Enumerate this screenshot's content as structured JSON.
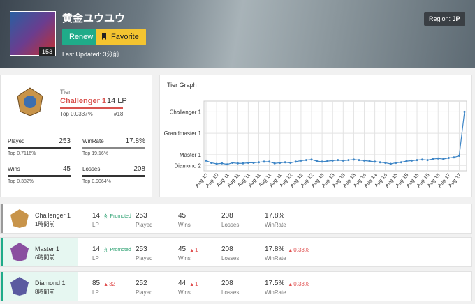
{
  "header": {
    "name": "黄金ユウユウ",
    "level": 153,
    "renew": "Renew",
    "favorite": "Favorite",
    "last_updated": "Last Updated: 3分前",
    "region_label": "Region:",
    "region": "JP"
  },
  "tier_card": {
    "label": "Tier",
    "tier": "Challenger 1",
    "lp": "14 LP",
    "top": "Top 0.0337%",
    "rank": "#18",
    "stats": [
      {
        "name": "Played",
        "value": 253,
        "top": "Top 0.7116%"
      },
      {
        "name": "WinRate",
        "value": "17.8%",
        "top": "Top 19.16%"
      },
      {
        "name": "Wins",
        "value": 45,
        "top": "Top 0.382%"
      },
      {
        "name": "Losses",
        "value": 208,
        "top": "Top 0.9064%"
      }
    ]
  },
  "chart_data": {
    "type": "line",
    "title": "Tier Graph",
    "color": "#3d85c6",
    "categories": [
      "Aug 10",
      null,
      "Aug 10",
      null,
      "Aug 11",
      null,
      "Aug 11",
      null,
      "Aug 11",
      null,
      "Aug 11",
      null,
      "Aug 11",
      null,
      "Aug 11",
      null,
      "Aug 12",
      null,
      "Aug 12",
      null,
      "Aug 12",
      null,
      "Aug 13",
      null,
      "Aug 13",
      null,
      "Aug 13",
      null,
      "Aug 13",
      null,
      "Aug 14",
      null,
      "Aug 14",
      null,
      "Aug 14",
      null,
      "Aug 15",
      null,
      "Aug 15",
      null,
      "Aug 15",
      null,
      "Aug 16",
      null,
      "Aug 16",
      null,
      "Aug 17",
      null,
      "Aug 17",
      null
    ],
    "values": [
      0.9,
      0.5,
      0.3,
      0.4,
      0.2,
      0.5,
      0.4,
      0.4,
      0.5,
      0.5,
      0.6,
      0.7,
      0.7,
      0.4,
      0.5,
      0.6,
      0.5,
      0.7,
      0.9,
      1.0,
      1.1,
      0.8,
      0.7,
      0.8,
      0.9,
      1.0,
      0.9,
      1.0,
      1.1,
      1.0,
      0.9,
      0.8,
      0.7,
      0.6,
      0.5,
      0.3,
      0.5,
      0.6,
      0.8,
      0.9,
      1.0,
      1.1,
      1.0,
      1.2,
      1.3,
      1.2,
      1.4,
      1.5,
      1.8,
      10
    ],
    "ylim": [
      -1,
      12
    ],
    "yticks": [
      {
        "value": 0,
        "label": "Diamond 2"
      },
      {
        "value": 2,
        "label": "Master 1"
      },
      {
        "value": 6,
        "label": "Grandmaster 1"
      },
      {
        "value": 10,
        "label": "Challenger 1"
      }
    ],
    "grid": true
  },
  "columns": [
    "LP",
    "Played",
    "Wins",
    "Losses",
    "WinRate"
  ],
  "history": [
    {
      "tier": "Challenger 1",
      "time": "1時間前",
      "lp": 14,
      "lp_badge": "Promoted",
      "played": 253,
      "wins": 45,
      "losses": 208,
      "winrate": "17.8%"
    },
    {
      "tier": "Master 1",
      "time": "6時間前",
      "lp": 14,
      "lp_badge": "Promoted",
      "played": 253,
      "wins": 45,
      "wins_change": "1",
      "losses": 208,
      "winrate": "17.8%",
      "winrate_change": "0.33%"
    },
    {
      "tier": "Diamond 1",
      "time": "8時間前",
      "lp": 85,
      "lp_change": "32",
      "played": 252,
      "wins": 44,
      "wins_change": "1",
      "losses": 208,
      "winrate": "17.5%",
      "winrate_change": "0.33%"
    }
  ]
}
